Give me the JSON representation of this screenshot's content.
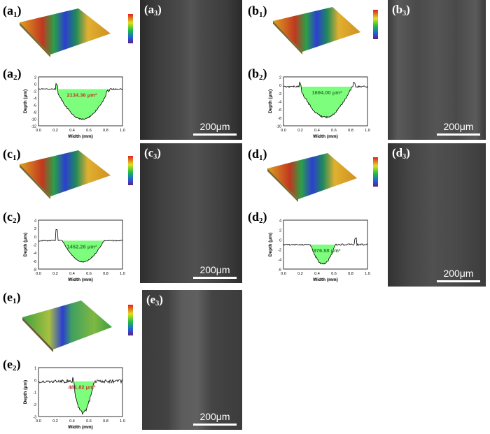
{
  "rows": [
    {
      "left": {
        "id": "a",
        "map_label": "a",
        "profile_label": "a",
        "area": "2134.36 μm²",
        "ylabel": "Depth (μm)",
        "xlabel": "Width (mm)",
        "yticks": [
          "2",
          "0",
          "-2",
          "-4",
          "-6",
          "-8",
          "-10",
          "-12"
        ],
        "xticks": [
          "0.0",
          "0.2",
          "0.4",
          "0.6",
          "0.8",
          "1.0"
        ],
        "area_color": "#c0392b",
        "sem_label": "a",
        "scale": "200μm"
      },
      "right": {
        "id": "b",
        "map_label": "b",
        "profile_label": "b",
        "area": "1694.00 μm²",
        "ylabel": "Depth (μm)",
        "xlabel": "Width (mm)",
        "yticks": [
          "2",
          "0",
          "-2",
          "-4",
          "-6",
          "-8",
          "-10"
        ],
        "xticks": [
          "0.0",
          "0.2",
          "0.4",
          "0.6",
          "0.8",
          "1.0"
        ],
        "area_color": "#2e7d32",
        "sem_label": "b",
        "scale": "200μm"
      }
    },
    {
      "left": {
        "id": "c",
        "map_label": "c",
        "profile_label": "c",
        "area": "1452.28 μm²",
        "ylabel": "Depth (μm)",
        "xlabel": "Width (mm)",
        "yticks": [
          "4",
          "2",
          "0",
          "-2",
          "-4",
          "-6",
          "-8"
        ],
        "xticks": [
          "0.0",
          "0.2",
          "0.4",
          "0.6",
          "0.8",
          "1.0"
        ],
        "area_color": "#2e7d32",
        "sem_label": "c",
        "scale": "200μm"
      },
      "right": {
        "id": "d",
        "map_label": "d",
        "profile_label": "d",
        "area": "976.88 μm²",
        "ylabel": "Depth (μm)",
        "xlabel": "Width (mm)",
        "yticks": [
          "4",
          "2",
          "0",
          "-2",
          "-4",
          "-6"
        ],
        "xticks": [
          "0.0",
          "0.2",
          "0.4",
          "0.6",
          "0.8",
          "1.0"
        ],
        "area_color": "#2e7d32",
        "sem_label": "d",
        "scale": "200μm"
      }
    },
    {
      "left": {
        "id": "e",
        "map_label": "e",
        "profile_label": "e",
        "area": "481.82 μm²",
        "ylabel": "Depth (μm)",
        "xlabel": "Width (mm)",
        "yticks": [
          "1",
          "0",
          "-1",
          "-2",
          "-3"
        ],
        "xticks": [
          "0.0",
          "0.2",
          "0.4",
          "0.6",
          "0.8",
          "1.0"
        ],
        "area_color": "#c0392b",
        "sem_label": "e",
        "scale": "200μm"
      }
    }
  ],
  "sub_map": "1",
  "sub_profile": "2",
  "sub_sem": "3"
}
